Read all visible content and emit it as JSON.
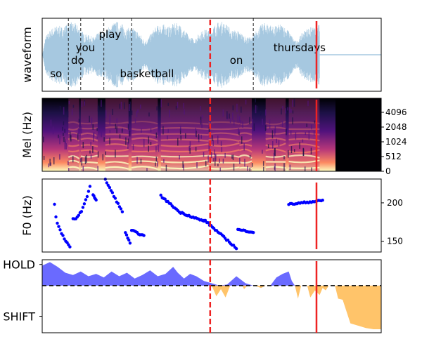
{
  "chart_data": [
    {
      "type": "area",
      "panel": "waveform",
      "ylabel": "waveform",
      "words": [
        {
          "text": "so",
          "x": 0.09
        },
        {
          "text": "do",
          "x": 0.23
        },
        {
          "text": "you",
          "x": 0.28
        },
        {
          "text": "play",
          "x": 0.44
        },
        {
          "text": "basketball",
          "x": 0.68
        },
        {
          "text": "on",
          "x": 1.26
        },
        {
          "text": "thursdays",
          "x": 1.67
        }
      ],
      "word_boundaries": [
        0.17,
        0.25,
        0.4,
        0.58,
        1.37
      ],
      "xlim": [
        0,
        2.2
      ],
      "ylim": [
        -1,
        1
      ],
      "color": "#a6c8e0"
    },
    {
      "type": "heatmap",
      "panel": "mel",
      "ylabel": "Mel (Hz)",
      "yticks": [
        "0",
        "512",
        "1024",
        "2048",
        "4096"
      ],
      "colormap": "magma"
    },
    {
      "type": "scatter",
      "panel": "f0",
      "ylabel": "F0 (Hz)",
      "yticks": [
        150,
        200
      ],
      "ylim": [
        136,
        231
      ],
      "xlim": [
        0,
        2.2
      ],
      "color": "#0000ff",
      "segments": [
        {
          "x": [
            0.08,
            0.18
          ],
          "y": [
            198,
            142
          ],
          "curve": "bow"
        },
        {
          "x": [
            0.2,
            0.31
          ],
          "y": [
            179,
            222
          ],
          "curve": "rise"
        },
        {
          "x": [
            0.33,
            0.35
          ],
          "y": [
            211,
            203
          ],
          "curve": "lin"
        },
        {
          "x": [
            0.41,
            0.52
          ],
          "y": [
            230,
            188
          ],
          "curve": "lin"
        },
        {
          "x": [
            0.54,
            0.57
          ],
          "y": [
            162,
            147
          ],
          "curve": "lin"
        },
        {
          "x": [
            0.58,
            0.66
          ],
          "y": [
            164,
            157
          ],
          "curve": "lin"
        },
        {
          "x": [
            0.77,
            0.88
          ],
          "y": [
            209,
            190
          ],
          "curve": "lin"
        },
        {
          "x": [
            0.89,
            1.05
          ],
          "y": [
            188,
            176
          ],
          "curve": "lin"
        },
        {
          "x": [
            1.05,
            1.26
          ],
          "y": [
            178,
            141
          ],
          "curve": "lin"
        },
        {
          "x": [
            1.27,
            1.37
          ],
          "y": [
            165,
            162
          ],
          "curve": "lin"
        },
        {
          "x": [
            1.6,
            1.82
          ],
          "y": [
            198,
            203
          ],
          "curve": "lin"
        }
      ]
    },
    {
      "type": "area",
      "panel": "turn",
      "yticklabels": [
        "HOLD",
        "SHIFT"
      ],
      "ylim": [
        -2,
        1.1
      ],
      "xlim": [
        0,
        2.2
      ],
      "hold_color": "#6a6aff",
      "shift_color": "#ffc46a",
      "hold": [
        [
          0.0,
          0.85
        ],
        [
          0.05,
          1.0
        ],
        [
          0.1,
          0.8
        ],
        [
          0.15,
          0.55
        ],
        [
          0.2,
          0.45
        ],
        [
          0.25,
          0.6
        ],
        [
          0.3,
          0.4
        ],
        [
          0.35,
          0.5
        ],
        [
          0.4,
          0.35
        ],
        [
          0.45,
          0.6
        ],
        [
          0.5,
          0.4
        ],
        [
          0.55,
          0.55
        ],
        [
          0.6,
          0.3
        ],
        [
          0.65,
          0.45
        ],
        [
          0.7,
          0.65
        ],
        [
          0.75,
          0.4
        ],
        [
          0.8,
          0.5
        ],
        [
          0.85,
          0.8
        ],
        [
          0.88,
          0.55
        ],
        [
          0.92,
          0.3
        ],
        [
          0.96,
          0.5
        ],
        [
          1.0,
          0.4
        ],
        [
          1.05,
          0.2
        ],
        [
          1.1,
          0.1
        ],
        [
          1.15,
          0.0
        ],
        [
          1.2,
          0.05
        ],
        [
          1.26,
          0.4
        ],
        [
          1.28,
          0.3
        ],
        [
          1.32,
          0.1
        ],
        [
          1.37,
          0.0
        ],
        [
          1.4,
          0.0
        ],
        [
          1.48,
          0.0
        ],
        [
          1.52,
          0.35
        ],
        [
          1.56,
          0.5
        ],
        [
          1.6,
          0.6
        ],
        [
          1.62,
          0.2
        ],
        [
          1.64,
          0.0
        ],
        [
          2.2,
          0.0
        ]
      ],
      "shift": [
        [
          0.0,
          0.0
        ],
        [
          1.1,
          0.0
        ],
        [
          1.13,
          -0.45
        ],
        [
          1.16,
          -0.15
        ],
        [
          1.19,
          -0.5
        ],
        [
          1.22,
          0.0
        ],
        [
          1.3,
          0.0
        ],
        [
          1.31,
          -0.15
        ],
        [
          1.33,
          0.0
        ],
        [
          1.38,
          0.0
        ],
        [
          1.42,
          -0.1
        ],
        [
          1.45,
          0.0
        ],
        [
          1.64,
          0.0
        ],
        [
          1.66,
          -0.55
        ],
        [
          1.68,
          0.0
        ],
        [
          1.72,
          0.0
        ],
        [
          1.74,
          -0.5
        ],
        [
          1.77,
          -0.2
        ],
        [
          1.8,
          -0.4
        ],
        [
          1.82,
          -0.1
        ],
        [
          1.84,
          -0.2
        ],
        [
          1.86,
          0.0
        ],
        [
          1.9,
          0.0
        ],
        [
          1.92,
          -0.55
        ],
        [
          1.95,
          -0.6
        ],
        [
          2.0,
          -1.6
        ],
        [
          2.05,
          -1.7
        ],
        [
          2.1,
          -1.8
        ],
        [
          2.15,
          -1.85
        ],
        [
          2.2,
          -1.85
        ]
      ]
    }
  ],
  "markers": {
    "dashed_red_x": 1.09,
    "solid_red_x": 1.78
  }
}
